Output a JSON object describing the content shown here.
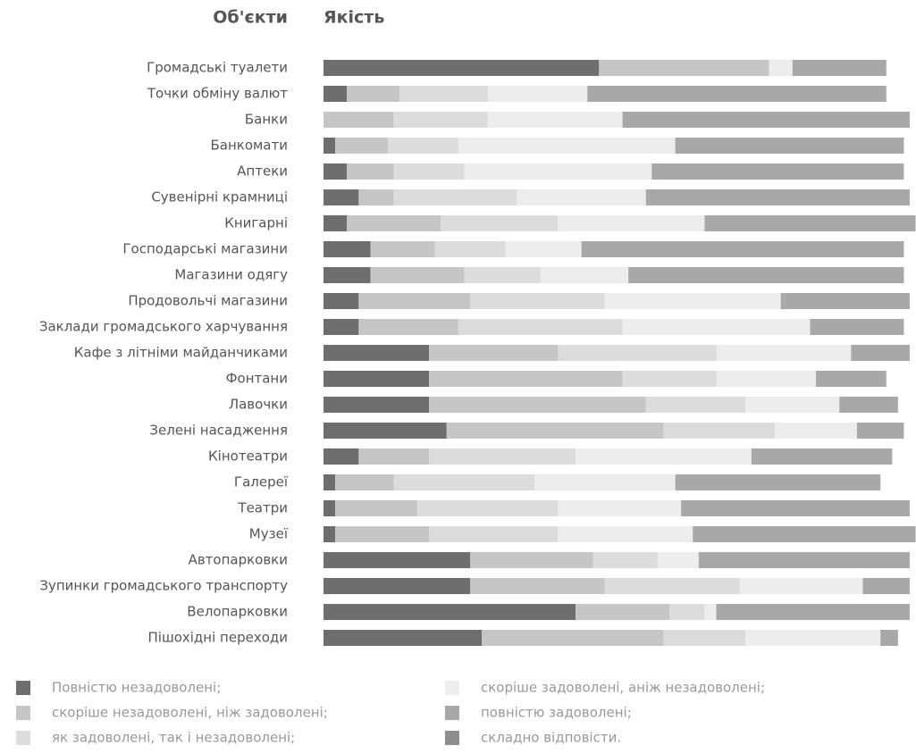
{
  "chart_data": {
    "type": "stacked-bar-horizontal",
    "category_header": "Об'єкти",
    "value_header": "Якість",
    "categories": [
      "Громадські туалети",
      "Точки обміну валют",
      "Банки",
      "Банкомати",
      "Аптеки",
      "Сувенірні крамниці",
      "Книгарні",
      "Господарські магазини",
      "Магазини одягу",
      "Продовольчі магазини",
      "Заклади громадського харчування",
      "Кафе з літніми майданчиками",
      "Фонтани",
      "Лавочки",
      "Зелені насадження",
      "Кінотеатри",
      "Галереї",
      "Театри",
      "Музеї",
      "Автопарковки",
      "Зупинки громадського транспорту",
      "Велопарковки",
      "Пішохідні переходи"
    ],
    "xlim": [
      0,
      100
    ],
    "series": [
      {
        "name": "Повністю незадоволені;",
        "color": "#6e6e6e",
        "values": [
          47,
          4,
          0,
          2,
          4,
          6,
          4,
          8,
          8,
          6,
          6,
          18,
          18,
          18,
          21,
          6,
          2,
          2,
          2,
          25,
          25,
          43,
          27
        ]
      },
      {
        "name": "скоріше незадоволені, ніж задоволені;",
        "color": "#c6c6c6",
        "values": [
          29,
          9,
          12,
          9,
          8,
          6,
          16,
          11,
          16,
          19,
          17,
          22,
          33,
          37,
          37,
          12,
          10,
          14,
          16,
          21,
          23,
          16,
          31
        ]
      },
      {
        "name": "як задоволені, так і незадоволені;",
        "color": "#dcdcdc",
        "values": [
          0,
          15,
          16,
          12,
          12,
          21,
          20,
          12,
          13,
          23,
          28,
          27,
          16,
          17,
          19,
          25,
          24,
          24,
          22,
          11,
          23,
          6,
          14
        ]
      },
      {
        "name": "скоріше задоволені, аніж незадоволені;",
        "color": "#ededed",
        "values": [
          4,
          17,
          23,
          37,
          32,
          22,
          25,
          13,
          15,
          30,
          32,
          23,
          17,
          16,
          14,
          30,
          24,
          21,
          23,
          7,
          21,
          2,
          23
        ]
      },
      {
        "name": "повністю задоволені;",
        "color": "#a8a8a8",
        "values": [
          16,
          51,
          49,
          39,
          43,
          45,
          36,
          55,
          47,
          22,
          16,
          10,
          12,
          10,
          8,
          24,
          35,
          39,
          38,
          36,
          8,
          33,
          3
        ]
      },
      {
        "name": "складно відповісти.",
        "color": "#8e8e8e",
        "values": [
          0,
          0,
          0,
          0,
          0,
          0,
          0,
          0,
          0,
          0,
          0,
          0,
          0,
          0,
          0,
          0,
          0,
          0,
          0,
          0,
          0,
          0,
          0
        ]
      }
    ]
  }
}
